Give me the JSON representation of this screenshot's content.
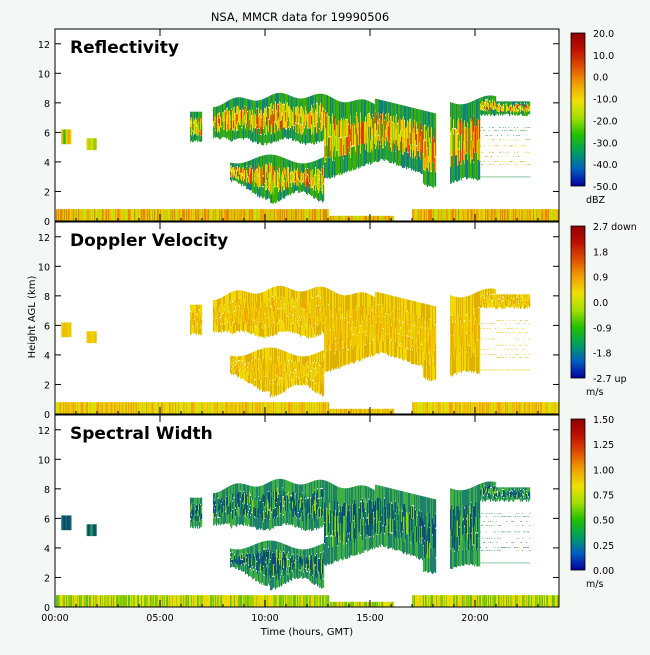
{
  "page": {
    "title": "NSA, MMCR data for 19990506",
    "ylabel": "Height AGL (km)",
    "xlabel": "Time (hours, GMT)",
    "x_ticks": [
      "00:00",
      "05:00",
      "10:00",
      "15:00",
      "20:00"
    ],
    "y_ticks": [
      "0",
      "2",
      "4",
      "6",
      "8",
      "10",
      "12"
    ]
  },
  "chart_data": [
    {
      "type": "heatmap",
      "title": "Reflectivity",
      "x_range_hours": [
        0,
        24
      ],
      "y_range_km": [
        0,
        13
      ],
      "colorbar": {
        "unit": "dBZ",
        "ticks": [
          "20.0",
          "10.0",
          "0.0",
          "-10.0",
          "-20.0",
          "-30.0",
          "-40.0",
          "-50.0"
        ],
        "range": [
          -50,
          20
        ],
        "colors": [
          "#0000a0",
          "#0060c0",
          "#00a060",
          "#20c000",
          "#a0e000",
          "#f0e000",
          "#f0a000",
          "#e05000",
          "#c01000",
          "#900000"
        ]
      },
      "fill": {
        "cloud": [
          "#f0d000",
          "#e8e000",
          "#c8e000",
          "#90d000",
          "#40b000",
          "#f0a800",
          "#e0c000"
        ],
        "edge": [
          "#20a040",
          "#108080",
          "#40b000"
        ],
        "core": [
          "#e06000",
          "#f08000",
          "#d04000"
        ],
        "surface": [
          "#f0a000",
          "#e8c000",
          "#d0e000",
          "#f08000",
          "#c0d800"
        ]
      }
    },
    {
      "type": "heatmap",
      "title": "Doppler Velocity",
      "x_range_hours": [
        0,
        24
      ],
      "y_range_km": [
        0,
        13
      ],
      "colorbar": {
        "unit": "m/s",
        "ticks": [
          "2.7 down",
          "1.8",
          "0.9",
          "0.0",
          "-0.9",
          "-1.8",
          "-2.7 up"
        ],
        "range": [
          -2.7,
          2.7
        ],
        "colors": [
          "#0000a0",
          "#0060c0",
          "#00a060",
          "#20c000",
          "#a0e000",
          "#f0e000",
          "#f0a000",
          "#e05000",
          "#c01000",
          "#900000"
        ]
      },
      "fill": {
        "cloud": [
          "#f0d000",
          "#f0c800",
          "#e8d800",
          "#f0c000",
          "#e8c400"
        ],
        "edge": [
          "#e0b000",
          "#f0d800"
        ],
        "core": [
          "#f0b000",
          "#f0a800"
        ],
        "surface": [
          "#f0c000",
          "#f0a000",
          "#e0e000",
          "#f0b800",
          "#d8e000"
        ]
      }
    },
    {
      "type": "heatmap",
      "title": "Spectral Width",
      "x_range_hours": [
        0,
        24
      ],
      "y_range_km": [
        0,
        13
      ],
      "colorbar": {
        "unit": "m/s",
        "ticks": [
          "1.50",
          "1.25",
          "1.00",
          "0.75",
          "0.50",
          "0.25",
          "0.00"
        ],
        "range": [
          0,
          1.5
        ],
        "colors": [
          "#0000a0",
          "#0060c0",
          "#00a060",
          "#20c000",
          "#a0e000",
          "#f0e000",
          "#f0a000",
          "#e05000",
          "#c01000",
          "#900000"
        ]
      },
      "fill": {
        "cloud": [
          "#105080",
          "#106070",
          "#0a4a70",
          "#187060",
          "#20a050"
        ],
        "edge": [
          "#40b040",
          "#208070"
        ],
        "core": [
          "#60c030",
          "#40b040",
          "#a0d000"
        ],
        "surface": [
          "#a0d000",
          "#e8e000",
          "#60c020",
          "#f0d000",
          "#80c800"
        ]
      }
    }
  ]
}
